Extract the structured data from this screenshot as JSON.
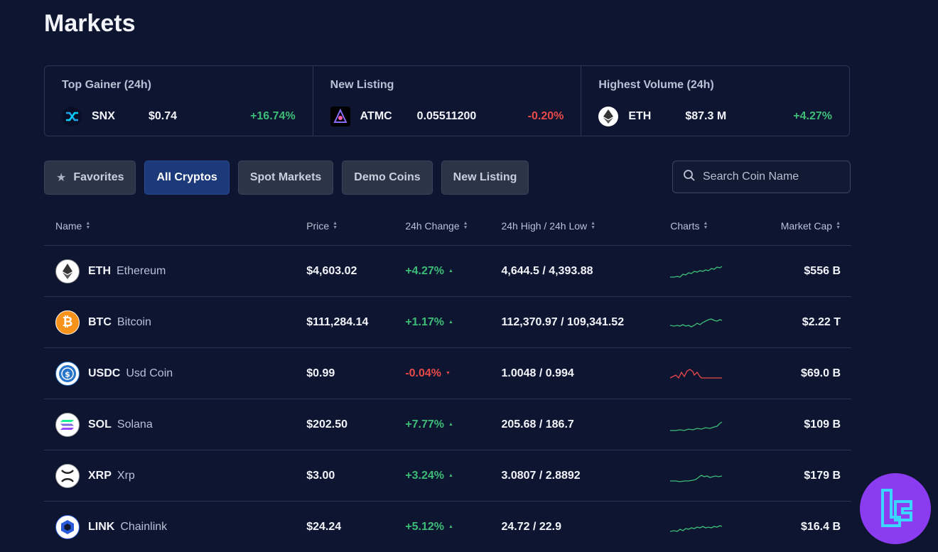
{
  "page": {
    "title": "Markets"
  },
  "summary": {
    "cards": [
      {
        "title": "Top Gainer (24h)",
        "symbol": "SNX",
        "value": "$0.74",
        "change": "+16.74%",
        "icon": "snx-icon"
      },
      {
        "title": "New Listing",
        "symbol": "ATMC",
        "value": "0.05511200",
        "change": "-0.20%",
        "icon": "atmc-icon"
      },
      {
        "title": "Highest Volume (24h)",
        "symbol": "ETH",
        "value": "$87.3 M",
        "change": "+4.27%",
        "icon": "ethereum-icon"
      }
    ]
  },
  "tabs": {
    "favorites": "Favorites",
    "all_cryptos": "All Cryptos",
    "spot_markets": "Spot Markets",
    "demo_coins": "Demo Coins",
    "new_listing": "New Listing"
  },
  "search": {
    "placeholder": "Search Coin Name"
  },
  "table": {
    "headers": {
      "name": "Name",
      "price": "Price",
      "change": "24h Change",
      "high_low": "24h High / 24h Low",
      "charts": "Charts",
      "market_cap": "Market Cap"
    },
    "rows": [
      {
        "symbol": "ETH",
        "name": "Ethereum",
        "price": "$4,603.02",
        "change": "+4.27%",
        "high_low": "4,644.5 / 4,393.88",
        "market_cap": "$556 B",
        "trend": "up"
      },
      {
        "symbol": "BTC",
        "name": "Bitcoin",
        "price": "$111,284.14",
        "change": "+1.17%",
        "high_low": "112,370.97 / 109,341.52",
        "market_cap": "$2.22 T",
        "trend": "up"
      },
      {
        "symbol": "USDC",
        "name": "Usd Coin",
        "price": "$0.99",
        "change": "-0.04%",
        "high_low": "1.0048 / 0.994",
        "market_cap": "$69.0 B",
        "trend": "down"
      },
      {
        "symbol": "SOL",
        "name": "Solana",
        "price": "$202.50",
        "change": "+7.77%",
        "high_low": "205.68 / 186.7",
        "market_cap": "$109 B",
        "trend": "up"
      },
      {
        "symbol": "XRP",
        "name": "Xrp",
        "price": "$3.00",
        "change": "+3.24%",
        "high_low": "3.0807 / 2.8892",
        "market_cap": "$179 B",
        "trend": "up"
      },
      {
        "symbol": "LINK",
        "name": "Chainlink",
        "price": "$24.24",
        "change": "+5.12%",
        "high_low": "24.72 / 22.9",
        "market_cap": "$16.4 B",
        "trend": "up"
      }
    ]
  },
  "colors": {
    "positive": "#3dbd78",
    "negative": "#e84a4a",
    "accent": "#1c3a7a",
    "brand_badge": "#8c3cf0"
  }
}
